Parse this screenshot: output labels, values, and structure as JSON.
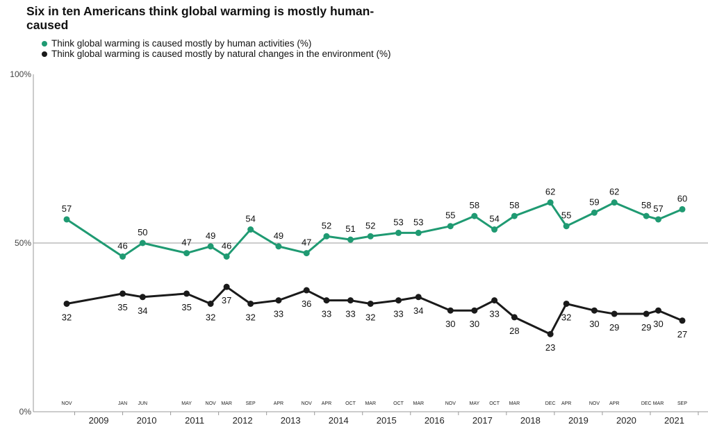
{
  "chart_data": {
    "type": "line",
    "title": "Six in ten Americans think global warming is mostly human-caused",
    "ylim": [
      0,
      100
    ],
    "y_ticks": [
      "0%",
      "50%",
      "100%"
    ],
    "x_year_ticks": [
      "2009",
      "2010",
      "2011",
      "2012",
      "2013",
      "2014",
      "2015",
      "2016",
      "2017",
      "2018",
      "2019",
      "2020",
      "2021"
    ],
    "legend_position": "top-left",
    "survey_dates": [
      {
        "label": "NOV",
        "year": 2008,
        "month": 11
      },
      {
        "label": "JAN",
        "year": 2010,
        "month": 1
      },
      {
        "label": "JUN",
        "year": 2010,
        "month": 6
      },
      {
        "label": "MAY",
        "year": 2011,
        "month": 5
      },
      {
        "label": "NOV",
        "year": 2011,
        "month": 11
      },
      {
        "label": "MAR",
        "year": 2012,
        "month": 3
      },
      {
        "label": "SEP",
        "year": 2012,
        "month": 9
      },
      {
        "label": "APR",
        "year": 2013,
        "month": 4
      },
      {
        "label": "NOV",
        "year": 2013,
        "month": 11
      },
      {
        "label": "APR",
        "year": 2014,
        "month": 4
      },
      {
        "label": "OCT",
        "year": 2014,
        "month": 10
      },
      {
        "label": "MAR",
        "year": 2015,
        "month": 3
      },
      {
        "label": "OCT",
        "year": 2015,
        "month": 10
      },
      {
        "label": "MAR",
        "year": 2016,
        "month": 3
      },
      {
        "label": "NOV",
        "year": 2016,
        "month": 11
      },
      {
        "label": "MAY",
        "year": 2017,
        "month": 5
      },
      {
        "label": "OCT",
        "year": 2017,
        "month": 10
      },
      {
        "label": "MAR",
        "year": 2018,
        "month": 3
      },
      {
        "label": "DEC",
        "year": 2018,
        "month": 12
      },
      {
        "label": "APR",
        "year": 2019,
        "month": 4
      },
      {
        "label": "NOV",
        "year": 2019,
        "month": 11
      },
      {
        "label": "APR",
        "year": 2020,
        "month": 4
      },
      {
        "label": "DEC",
        "year": 2020,
        "month": 12
      },
      {
        "label": "MAR",
        "year": 2021,
        "month": 3
      },
      {
        "label": "SEP",
        "year": 2021,
        "month": 9
      }
    ],
    "series": [
      {
        "name": "Think global warming is caused mostly by human activities (%)",
        "color": "#1f9a72",
        "values": [
          57,
          46,
          50,
          47,
          49,
          46,
          54,
          49,
          47,
          52,
          51,
          52,
          53,
          53,
          55,
          58,
          54,
          58,
          62,
          55,
          59,
          62,
          58,
          57,
          60
        ]
      },
      {
        "name": "Think global warming is caused mostly by natural changes in the environment (%)",
        "color": "#1a1a1a",
        "values": [
          32,
          35,
          34,
          35,
          32,
          37,
          32,
          33,
          36,
          33,
          33,
          32,
          33,
          34,
          30,
          30,
          33,
          28,
          23,
          32,
          30,
          29,
          29,
          30,
          27
        ]
      }
    ]
  }
}
